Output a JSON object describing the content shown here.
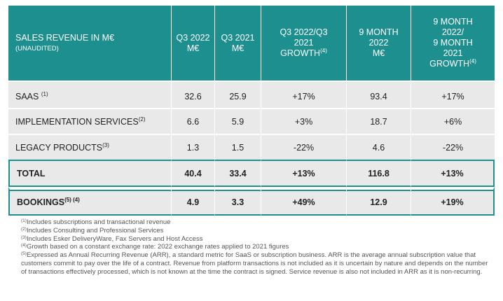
{
  "header": {
    "title": "SALES REVENUE IN M€",
    "subtitle": "(UNAUDITED)",
    "col1": "Q3 2022",
    "col1_unit": "M€",
    "col2": "Q3 2021",
    "col2_unit": "M€",
    "col3_line1": "Q3 2022/Q3",
    "col3_line2": "2021",
    "col3_line3": "GROWTH",
    "col3_sup": "(4)",
    "col4_line1": "9 MONTH",
    "col4_line2": "2022",
    "col4_unit": "M€",
    "col5_line1": "9 MONTH",
    "col5_line2": "2022/",
    "col5_line3": "9 MONTH",
    "col5_line4": "2021",
    "col5_line5": "GROWTH",
    "col5_sup": "(4)"
  },
  "rows": [
    {
      "label": "SAAS",
      "sup": "(1)",
      "q3_2022": "32.6",
      "q3_2021": "25.9",
      "q3_growth": "+17%",
      "m9_2022": "93.4",
      "m9_growth": "+17%"
    },
    {
      "label": "IMPLEMENTATION SERVICES",
      "sup": "(2)",
      "q3_2022": "6.6",
      "q3_2021": "5.9",
      "q3_growth": "+3%",
      "m9_2022": "18.7",
      "m9_growth": "+6%"
    },
    {
      "label": "LEGACY PRODUCTS",
      "sup": "(3)",
      "q3_2022": "1.3",
      "q3_2021": "1.5",
      "q3_growth": "-22%",
      "m9_2022": "4.6",
      "m9_growth": "-22%"
    },
    {
      "label": "TOTAL",
      "sup": "",
      "q3_2022": "40.4",
      "q3_2021": "33.4",
      "q3_growth": "+13%",
      "m9_2022": "116.8",
      "m9_growth": "+13%"
    },
    {
      "label": "BOOKINGS",
      "sup": "(5) (4)",
      "q3_2022": "4.9",
      "q3_2021": "3.3",
      "q3_growth": "+49%",
      "m9_2022": "12.9",
      "m9_growth": "+19%"
    }
  ],
  "notes": {
    "n1_sup": "(1)",
    "n1": "Includes subscriptions and transactional revenue",
    "n2_sup": "(2)",
    "n2": "Includes Consulting and Professional Services",
    "n3_sup": "(3)",
    "n3": "Includes Esker DeliveryWare, Fax Servers and Host Access",
    "n4_sup": "(4)",
    "n4": "Growth based on a constant exchange rate: 2022 exchange rates applied to 2021 figures",
    "n5_sup": "(5)",
    "n5": "Expressed as Annual Recurring Revenue (ARR), a standard metric for SaaS or subscription business. ARR is the average annual subscription value that customers commit to pay over the life of a contract. Revenue from platform transactions is not included as it is uncertain by nature and depends on the number of transactions effectively processed, which is not known at the time the contract is signed. Service revenue is also not included in ARR as it is non-recurring."
  }
}
